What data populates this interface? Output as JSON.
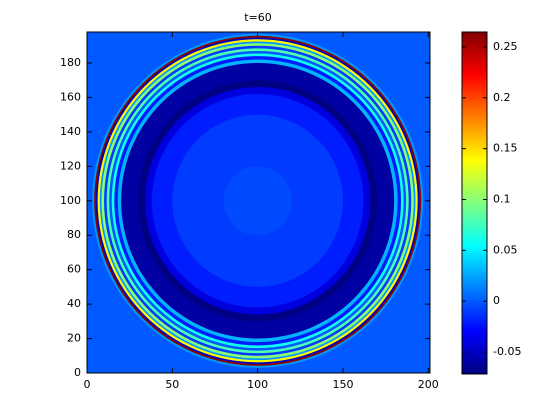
{
  "chart_data": {
    "type": "heatmap",
    "title": "t=60",
    "xlim": [
      0,
      201
    ],
    "ylim": [
      0,
      198
    ],
    "xticks": [
      0,
      50,
      100,
      150,
      200
    ],
    "yticks": [
      0,
      20,
      40,
      60,
      80,
      100,
      120,
      140,
      160,
      180
    ],
    "background_value": 0,
    "center": [
      100,
      100
    ],
    "rings": {
      "r": [
        97,
        95.8,
        94.8,
        93.8,
        92.5,
        91.5,
        90,
        88.5,
        87,
        85.5,
        84,
        82,
        80,
        70,
        66,
        62,
        50,
        20
      ],
      "values": [
        0.02,
        0.26,
        -0.05,
        0.14,
        0.02,
        0.1,
        -0.01,
        0.08,
        0,
        0.06,
        -0.02,
        0.03,
        -0.06,
        -0.07,
        -0.04,
        -0.02,
        -0.01,
        -0.005
      ]
    },
    "colormap": "jet",
    "clim": [
      -0.0716,
      0.2647
    ],
    "cticks": [
      -0.05,
      0,
      0.05,
      0.1,
      0.15,
      0.2,
      0.25
    ]
  }
}
